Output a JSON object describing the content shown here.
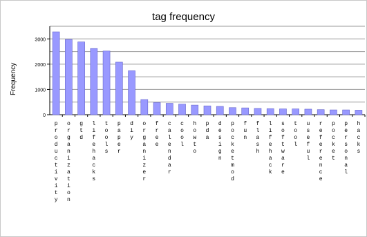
{
  "chart_data": {
    "type": "bar",
    "title": "tag frequency",
    "ylabel": "Frequency",
    "xlabel": "",
    "ylim": [
      0,
      3500
    ],
    "yticks": [
      0,
      1000,
      2000,
      3000
    ],
    "grid": true,
    "bar_color": "#9999ff",
    "categories": [
      "productivity",
      "organization",
      "gtd",
      "lifehacks",
      "tools",
      "paper",
      "diy",
      "organizer",
      "free",
      "calendar",
      "cool",
      "howto",
      "pda",
      "design",
      "pocketmod",
      "fun",
      "flash",
      "lifehack",
      "software",
      "tool",
      "useful",
      "reference",
      "pocket",
      "personal",
      "hacks"
    ],
    "values": [
      3280,
      2980,
      2880,
      2620,
      2520,
      2080,
      1740,
      600,
      480,
      450,
      420,
      380,
      350,
      330,
      280,
      270,
      250,
      240,
      230,
      230,
      220,
      200,
      190,
      190,
      180
    ]
  }
}
